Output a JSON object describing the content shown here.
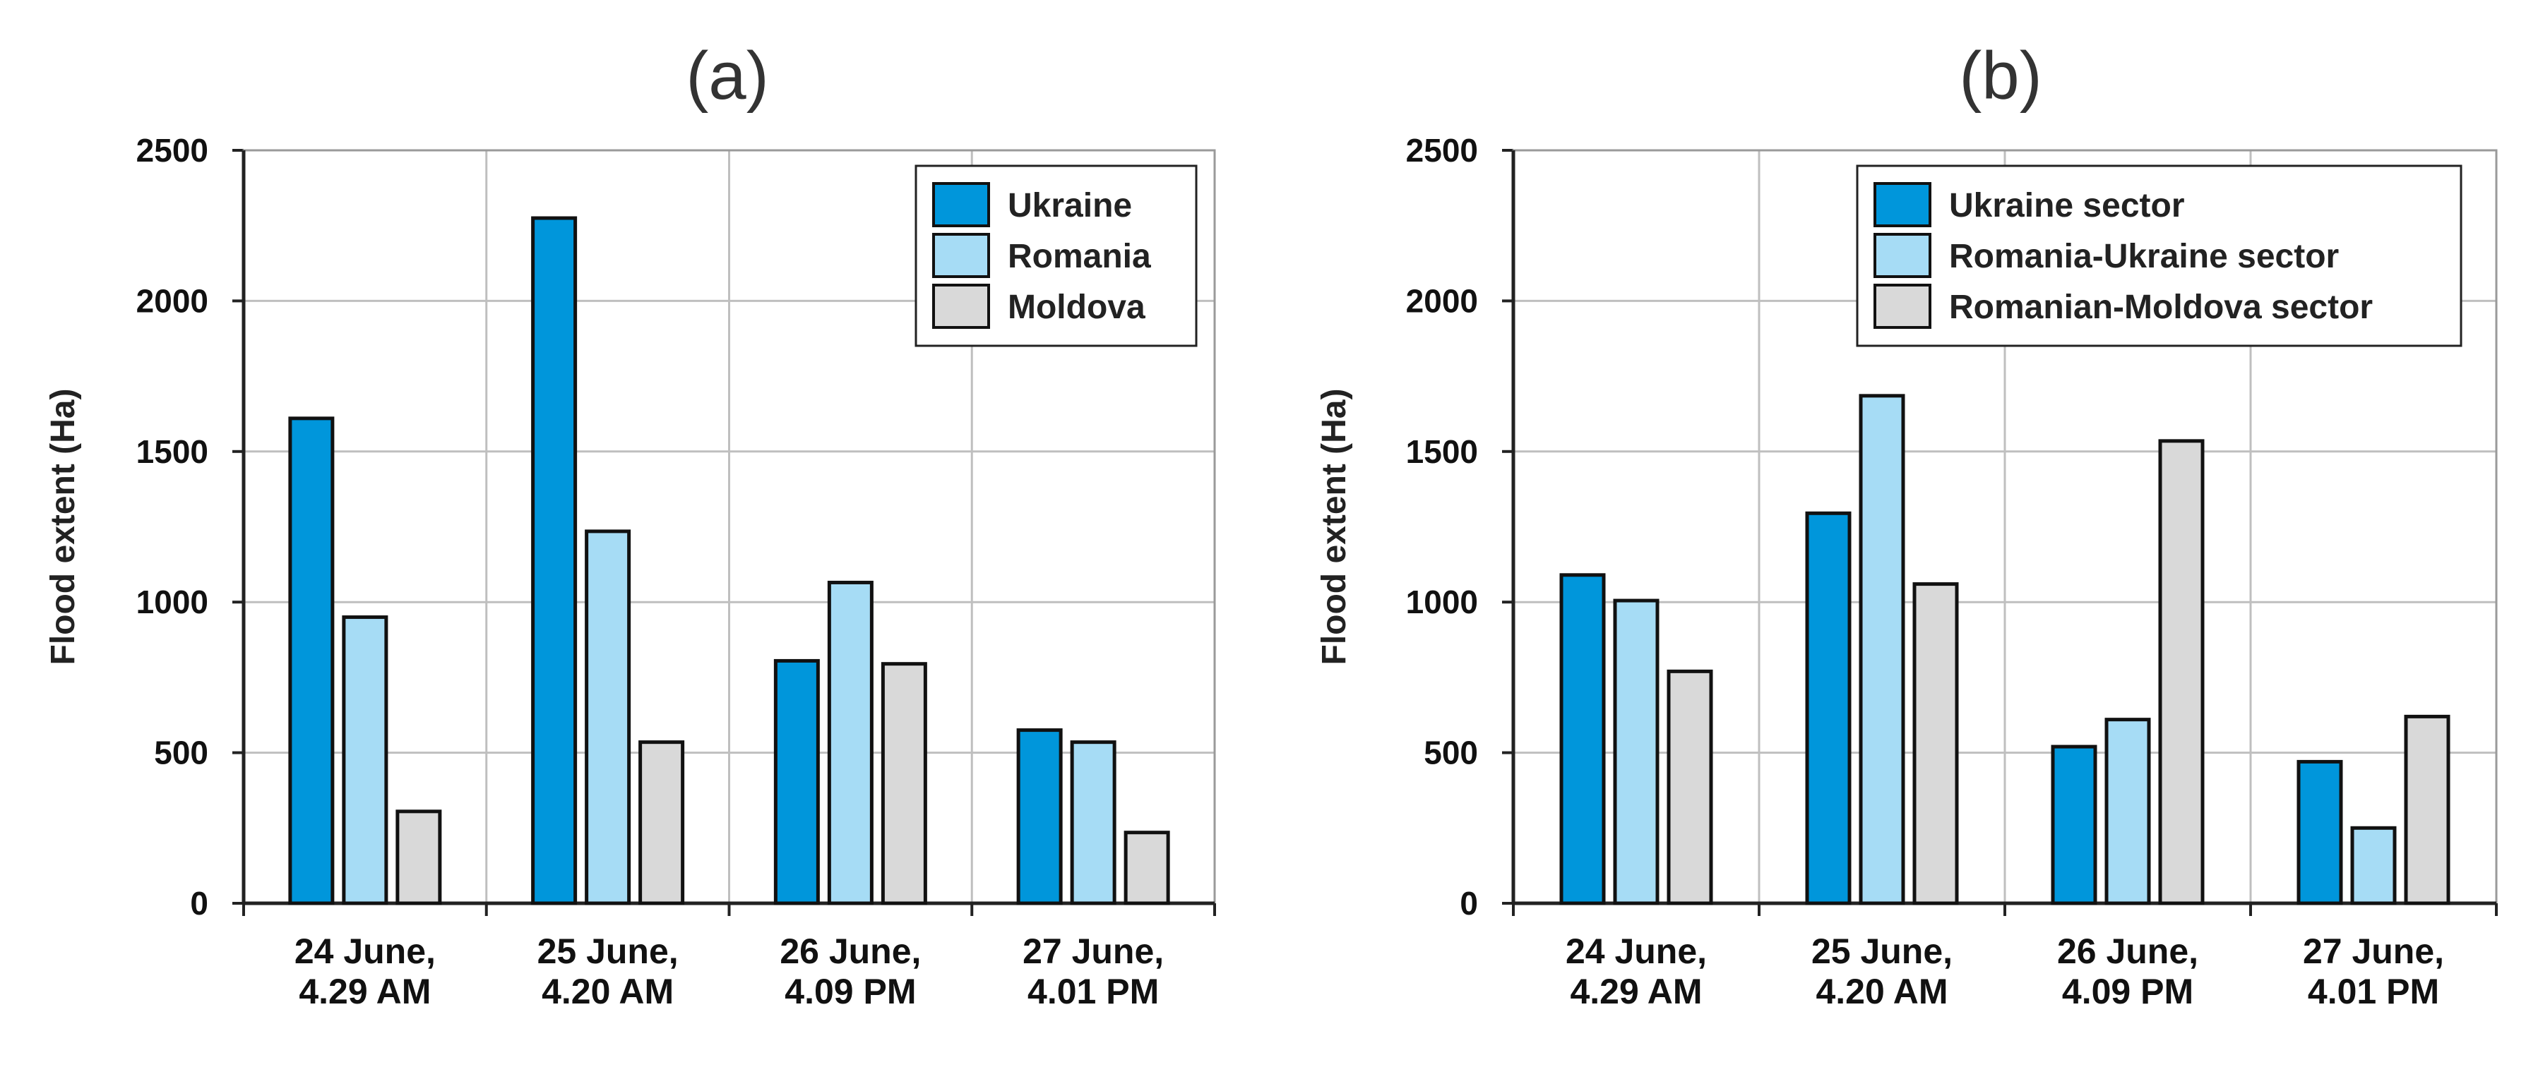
{
  "chart_data": [
    {
      "type": "bar",
      "title": "(a)",
      "ylabel": "Flood extent (Ha)",
      "xlabel": "",
      "ylim": [
        0,
        2500
      ],
      "yticks": [
        "0",
        "500",
        "1000",
        "1500",
        "2000",
        "2500"
      ],
      "grid": true,
      "legend_position": "top-right",
      "categories": [
        [
          "24 June,",
          "4.29 AM"
        ],
        [
          "25 June,",
          "4.20 AM"
        ],
        [
          "26 June,",
          "4.09 PM"
        ],
        [
          "27 June,",
          "4.01 PM"
        ]
      ],
      "series": [
        {
          "name": "Ukraine",
          "color": "#0096DB",
          "values": [
            1610,
            2275,
            805,
            575
          ]
        },
        {
          "name": "Romania",
          "color": "#A6DCF5",
          "values": [
            950,
            1235,
            1065,
            535
          ]
        },
        {
          "name": "Moldova",
          "color": "#D9D9D9",
          "values": [
            305,
            535,
            795,
            235
          ]
        }
      ]
    },
    {
      "type": "bar",
      "title": "(b)",
      "ylabel": "Flood extent (Ha)",
      "xlabel": "",
      "ylim": [
        0,
        2500
      ],
      "yticks": [
        "0",
        "500",
        "1000",
        "1500",
        "2000",
        "2500"
      ],
      "grid": true,
      "legend_position": "top-right",
      "categories": [
        [
          "24 June,",
          "4.29 AM"
        ],
        [
          "25 June,",
          "4.20 AM"
        ],
        [
          "26 June,",
          "4.09 PM"
        ],
        [
          "27 June,",
          "4.01 PM"
        ]
      ],
      "series": [
        {
          "name": "Ukraine sector",
          "color": "#0096DB",
          "values": [
            1090,
            1295,
            520,
            470
          ]
        },
        {
          "name": "Romania-Ukraine sector",
          "color": "#A6DCF5",
          "values": [
            1005,
            1685,
            610,
            250
          ]
        },
        {
          "name": "Romanian-Moldova sector",
          "color": "#D9D9D9",
          "values": [
            770,
            1060,
            1535,
            620
          ]
        }
      ]
    }
  ]
}
